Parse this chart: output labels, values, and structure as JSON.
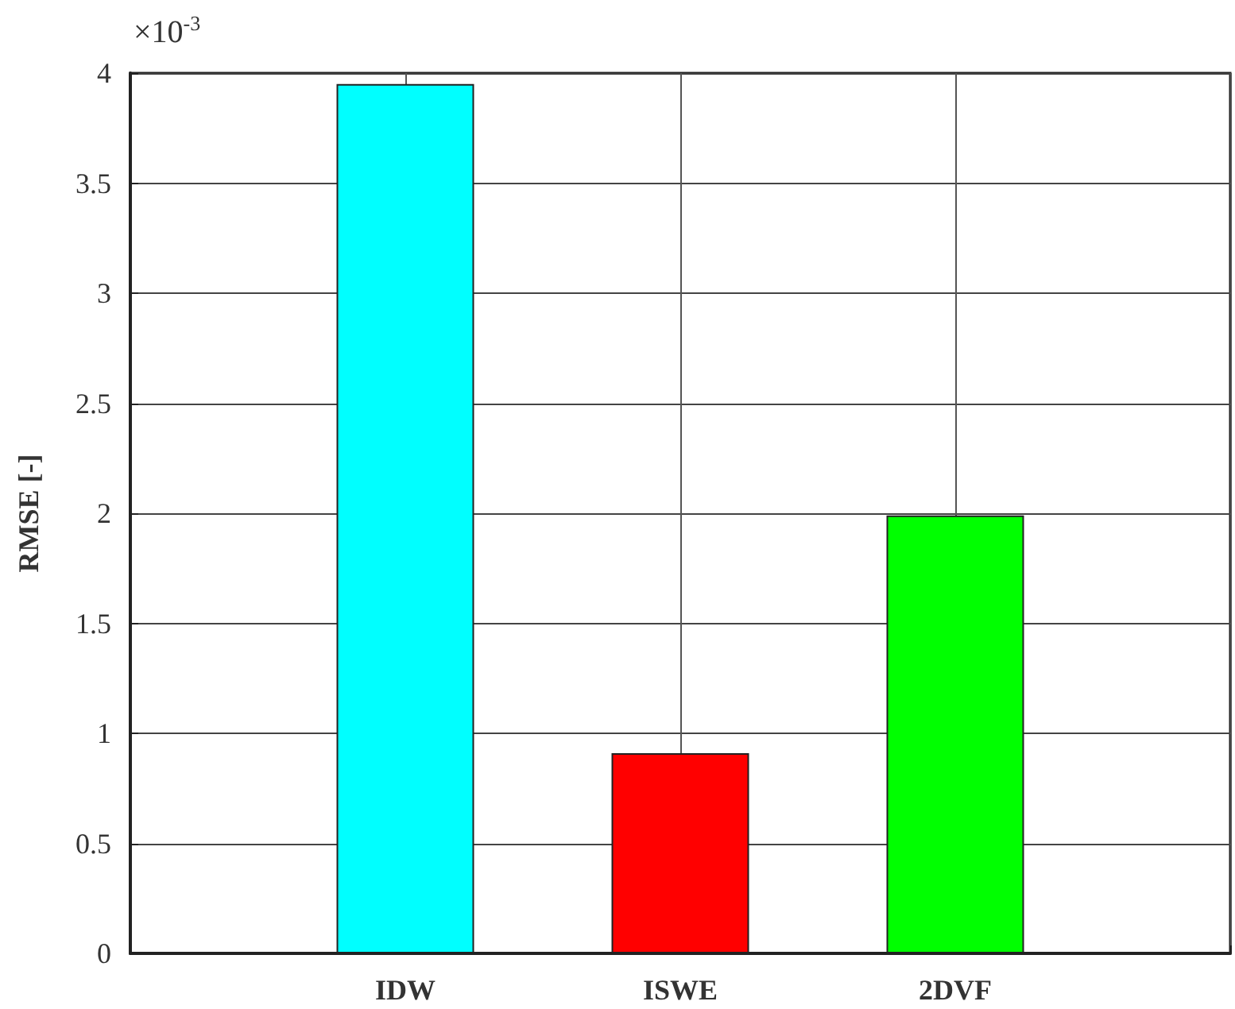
{
  "chart_data": {
    "type": "bar",
    "ylabel": "RMSE [-]",
    "annotations": [
      "×10$^{-3}$"
    ],
    "categories": [
      "IDW",
      "ISWE",
      "2DVF"
    ],
    "values": [
      3.95,
      0.91,
      1.99
    ],
    "colors": [
      "#00ffff",
      "#ff0000",
      "#00ff00"
    ],
    "ylim": [
      0,
      4
    ],
    "yticks": [
      0,
      0.5,
      1,
      1.5,
      2,
      2.5,
      3,
      3.5,
      4
    ],
    "grid": true
  }
}
